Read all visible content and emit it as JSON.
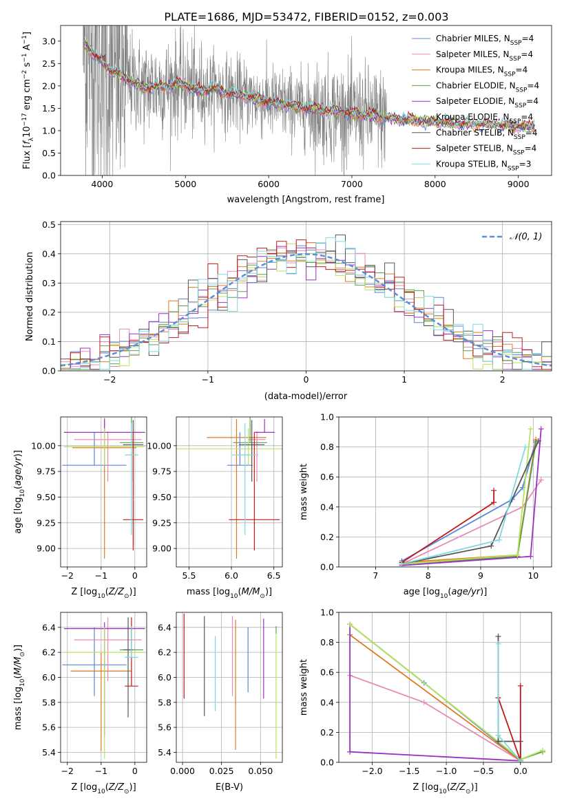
{
  "figure": {
    "title": "PLATE=1686, MJD=53472, FIBERID=0152, z=0.003",
    "models": [
      {
        "name": "Chabrier MILES",
        "nssp": "4",
        "color": "#5b84d8"
      },
      {
        "name": "Salpeter MILES",
        "nssp": "4",
        "color": "#e88ab8"
      },
      {
        "name": "Kroupa MILES",
        "nssp": "4",
        "color": "#e07820"
      },
      {
        "name": "Chabrier ELODIE",
        "nssp": "4",
        "color": "#5e9e4a"
      },
      {
        "name": "Salpeter ELODIE",
        "nssp": "4",
        "color": "#9b30c0"
      },
      {
        "name": "Kroupa ELODIE",
        "nssp": "4",
        "color": "#b6e35a"
      },
      {
        "name": "Chabrier STELIB",
        "nssp": "4",
        "color": "#555555"
      },
      {
        "name": "Salpeter STELIB",
        "nssp": "4",
        "color": "#c01818"
      },
      {
        "name": "Kroupa STELIB",
        "nssp": "3",
        "color": "#7fd8e0"
      }
    ],
    "data_color": "#808080"
  },
  "chart_data": [
    {
      "id": "spectrum",
      "type": "line",
      "title": "PLATE=1686, MJD=53472, FIBERID=0152, z=0.003",
      "xlabel": "wavelength [Angstrom, rest frame]",
      "ylabel_parts": [
        "Flux [",
        "f",
        "λ",
        "10",
        "−17",
        " erg cm",
        "−2",
        " s",
        "−1",
        " A",
        "−1",
        "]"
      ],
      "xlim": [
        3500,
        9400
      ],
      "ylim": [
        0,
        3.35
      ],
      "xticks": [
        4000,
        5000,
        6000,
        7000,
        8000,
        9000
      ],
      "yticks": [
        0.0,
        0.5,
        1.0,
        1.5,
        2.0,
        2.5,
        3.0
      ],
      "continuum": {
        "x": [
          3780,
          3900,
          4000,
          4100,
          4200,
          4300,
          4400,
          4500,
          4600,
          4700,
          4800,
          4900,
          5000,
          5100,
          5200,
          5300,
          5400,
          5500,
          5600,
          5800,
          6000,
          6200,
          6400,
          6600,
          6800,
          7000,
          7200,
          7400,
          7600,
          7800,
          8000,
          8200,
          8400,
          8600,
          8800,
          9000,
          9200
        ],
        "y": [
          2.95,
          2.7,
          2.55,
          2.35,
          2.28,
          2.12,
          2.05,
          1.95,
          2.0,
          1.98,
          2.0,
          2.05,
          2.02,
          1.92,
          1.88,
          1.95,
          1.92,
          1.85,
          1.8,
          1.73,
          1.65,
          1.58,
          1.52,
          1.47,
          1.43,
          1.38,
          1.35,
          1.3,
          1.25,
          1.22,
          1.2,
          1.17,
          1.15,
          1.14,
          1.12,
          1.1,
          1.1
        ]
      },
      "data_xrange": [
        3770,
        7420
      ]
    },
    {
      "id": "residuals",
      "type": "histogram",
      "xlabel": "(data-model)/error",
      "ylabel": "Normed distribution",
      "xlim": [
        -2.5,
        2.5
      ],
      "ylim": [
        0,
        0.51
      ],
      "xticks": [
        -2,
        -1,
        0,
        1,
        2
      ],
      "yticks": [
        0.0,
        0.1,
        0.2,
        0.3,
        0.4,
        0.5
      ],
      "bin_width": 0.1,
      "legend": "𝒩(0, 1)",
      "reference_curve": {
        "type": "gaussian",
        "mean": 0,
        "sigma": 1,
        "color": "#5b8fd8"
      }
    },
    {
      "id": "age-vs-Z",
      "type": "scatter",
      "xlabel": "Z [log10(Z/Z⊙)]",
      "ylabel": "age  [log10(age/yr)]",
      "xlim": [
        -2.2,
        0.35
      ],
      "ylim": [
        8.82,
        10.28
      ],
      "xticks": [
        -2,
        -1,
        0
      ],
      "yticks": [
        9.0,
        9.25,
        9.5,
        9.75,
        10.0
      ],
      "points": [
        {
          "model": 0,
          "x": -1.2,
          "xerr": 0.95,
          "y": 9.81,
          "yerr": [
            0.0,
            0.32
          ]
        },
        {
          "model": 1,
          "x": -0.8,
          "xerr": 1.0,
          "y": 10.06,
          "yerr": [
            0.41,
            0.08
          ]
        },
        {
          "model": 2,
          "x": -0.9,
          "xerr": 0.95,
          "y": 9.98,
          "yerr": [
            1.08,
            0.29
          ]
        },
        {
          "model": 3,
          "x": -0.1,
          "xerr": 0.35,
          "y": 10.03,
          "yerr": [
            0.0,
            0.27
          ]
        },
        {
          "model": 4,
          "x": -0.9,
          "xerr": 1.2,
          "y": 10.13,
          "yerr": [
            0.0,
            0.13
          ]
        },
        {
          "model": 5,
          "x": -0.9,
          "xerr": 1.2,
          "y": 9.99,
          "yerr": [
            0.18,
            0.18
          ]
        },
        {
          "model": 6,
          "x": -0.05,
          "xerr": 0.3,
          "y": 10.01,
          "yerr": [
            0.36,
            0.24
          ]
        },
        {
          "model": 7,
          "x": -0.05,
          "xerr": 0.3,
          "y": 9.28,
          "yerr": [
            0.3,
            0.85
          ]
        },
        {
          "model": 8,
          "x": -0.1,
          "xerr": 0.2,
          "y": 9.91,
          "yerr": [
            0.78,
            0.31
          ]
        }
      ]
    },
    {
      "id": "age-vs-mass",
      "type": "scatter",
      "xlabel": "mass [log10(M/M⊙)]",
      "ylabel": "",
      "xlim": [
        5.35,
        6.6
      ],
      "ylim": [
        8.82,
        10.28
      ],
      "xticks": [
        5.5,
        6.0,
        6.5
      ],
      "yticks": [
        9.0,
        9.25,
        9.5,
        9.75,
        10.0
      ],
      "points": [
        {
          "model": 0,
          "x": 6.1,
          "xerr": 0.15,
          "y": 9.81,
          "yerr": [
            0.0,
            0.32
          ]
        },
        {
          "model": 1,
          "x": 6.3,
          "xerr": 0.1,
          "y": 10.06,
          "yerr": [
            0.41,
            0.08
          ]
        },
        {
          "model": 2,
          "x": 6.06,
          "xerr": 0.35,
          "y": 10.08,
          "yerr": [
            1.18,
            0.18
          ]
        },
        {
          "model": 3,
          "x": 6.22,
          "xerr": 0.2,
          "y": 10.03,
          "yerr": [
            0.0,
            0.27
          ]
        },
        {
          "model": 4,
          "x": 6.39,
          "xerr": 0.12,
          "y": 10.13,
          "yerr": [
            0.0,
            0.13
          ]
        },
        {
          "model": 5,
          "x": 6.2,
          "xerr": 0.85,
          "y": 9.97,
          "yerr": [
            0.16,
            0.2
          ]
        },
        {
          "model": 6,
          "x": 6.24,
          "xerr": 0.15,
          "y": 10.01,
          "yerr": [
            0.36,
            0.24
          ]
        },
        {
          "model": 7,
          "x": 6.27,
          "xerr": 0.3,
          "y": 9.28,
          "yerr": [
            0.3,
            0.85
          ]
        },
        {
          "model": 8,
          "x": 6.16,
          "xerr": 0.15,
          "y": 9.91,
          "yerr": [
            0.78,
            0.31
          ]
        }
      ]
    },
    {
      "id": "massweight-vs-age",
      "type": "line",
      "xlabel": "age  [log10(age/yr)]",
      "ylabel": "mass weight",
      "xlim": [
        6.3,
        10.35
      ],
      "ylim": [
        0,
        1.0
      ],
      "xticks": [
        7,
        8,
        9,
        10
      ],
      "yticks": [
        0.0,
        0.2,
        0.4,
        0.6,
        0.8,
        1.0
      ],
      "series": [
        {
          "model": 0,
          "x": [
            7.5,
            9.6,
            9.8,
            10.05
          ],
          "y": [
            0.04,
            0.45,
            0.53,
            0.84
          ]
        },
        {
          "model": 1,
          "x": [
            7.5,
            9.8,
            10.15
          ],
          "y": [
            0.02,
            0.4,
            0.58
          ]
        },
        {
          "model": 2,
          "x": [
            7.5,
            9.7,
            10.05
          ],
          "y": [
            0.03,
            0.08,
            0.85
          ]
        },
        {
          "model": 3,
          "x": [
            7.5,
            9.7,
            10.05
          ],
          "y": [
            0.02,
            0.07,
            0.83
          ]
        },
        {
          "model": 4,
          "x": [
            7.5,
            9.95,
            10.15
          ],
          "y": [
            0.01,
            0.07,
            0.92
          ]
        },
        {
          "model": 5,
          "x": [
            7.5,
            9.7,
            9.95
          ],
          "y": [
            0.02,
            0.08,
            0.92
          ]
        },
        {
          "model": 6,
          "x": [
            7.5,
            9.2,
            10.1
          ],
          "y": [
            0.02,
            0.14,
            0.84
          ]
        },
        {
          "model": 7,
          "x": [
            7.5,
            9.25,
            9.25
          ],
          "y": [
            0.03,
            0.43,
            0.51
          ]
        },
        {
          "model": 8,
          "x": [
            7.5,
            9.35,
            9.85
          ],
          "y": [
            0.02,
            0.18,
            0.8
          ]
        }
      ]
    },
    {
      "id": "mass-vs-Z",
      "type": "scatter",
      "xlabel": "Z [log10(Z/Z⊙)]",
      "ylabel": "mass [log10(M/M⊙)]",
      "xlim": [
        -2.2,
        0.35
      ],
      "ylim": [
        5.32,
        6.52
      ],
      "xticks": [
        -2,
        -1,
        0
      ],
      "yticks": [
        5.4,
        5.6,
        5.8,
        6.0,
        6.2,
        6.4
      ],
      "points": [
        {
          "model": 0,
          "x": -1.2,
          "xerr": 0.95,
          "y": 6.1,
          "yerr": [
            0.25,
            0.3
          ]
        },
        {
          "model": 1,
          "x": -0.8,
          "xerr": 1.0,
          "y": 6.3,
          "yerr": [
            0.33,
            0.18
          ]
        },
        {
          "model": 2,
          "x": -1.0,
          "xerr": 0.9,
          "y": 6.05,
          "yerr": [
            0.64,
            0.15
          ]
        },
        {
          "model": 3,
          "x": -0.1,
          "xerr": 0.35,
          "y": 6.22,
          "yerr": [
            0.0,
            0.2
          ]
        },
        {
          "model": 4,
          "x": -0.9,
          "xerr": 1.2,
          "y": 6.39,
          "yerr": [
            0.86,
            0.05
          ]
        },
        {
          "model": 5,
          "x": -0.9,
          "xerr": 1.2,
          "y": 6.2,
          "yerr": [
            0.85,
            0.2
          ]
        },
        {
          "model": 6,
          "x": -0.2,
          "xerr": 0.15,
          "y": 6.22,
          "yerr": [
            0.54,
            0.26
          ]
        },
        {
          "model": 7,
          "x": -0.1,
          "xerr": 0.2,
          "y": 5.93,
          "yerr": [
            0.0,
            0.55
          ]
        },
        {
          "model": 8,
          "x": -0.1,
          "xerr": 0.2,
          "y": 6.16,
          "yerr": [
            0.0,
            0.25
          ]
        }
      ]
    },
    {
      "id": "mass-vs-ebv",
      "type": "scatter",
      "xlabel": "E(B-V)",
      "ylabel": "",
      "xlim": [
        -0.004,
        0.064
      ],
      "ylim": [
        5.32,
        6.52
      ],
      "xticks": [
        0.0,
        0.025,
        0.05
      ],
      "xtick_labels": [
        "0.000",
        "0.025",
        "0.050"
      ],
      "yticks": [
        5.4,
        5.6,
        5.8,
        6.0,
        6.2,
        6.4
      ],
      "points": [
        {
          "model": 7,
          "x": 0.001,
          "y": 6.17,
          "yerr": [
            0.34,
            0.34
          ]
        },
        {
          "model": 6,
          "x": 0.014,
          "y": 6.09,
          "yerr": [
            0.4,
            0.4
          ]
        },
        {
          "model": 8,
          "x": 0.021,
          "y": 6.03,
          "yerr": [
            0.3,
            0.3
          ]
        },
        {
          "model": 1,
          "x": 0.032,
          "y": 6.17,
          "yerr": [
            0.32,
            0.32
          ]
        },
        {
          "model": 2,
          "x": 0.034,
          "y": 5.94,
          "yerr": [
            0.52,
            0.52
          ]
        },
        {
          "model": 0,
          "x": 0.042,
          "y": 6.14,
          "yerr": [
            0.26,
            0.26
          ]
        },
        {
          "model": 4,
          "x": 0.052,
          "y": 6.15,
          "yerr": [
            0.32,
            0.32
          ]
        },
        {
          "model": 3,
          "x": 0.06,
          "y": 6.35,
          "yerr": [
            0.0,
            0.06
          ]
        },
        {
          "model": 5,
          "x": 0.06,
          "y": 5.85,
          "yerr": [
            0.5,
            0.5
          ]
        }
      ]
    },
    {
      "id": "massweight-vs-Z",
      "type": "line",
      "xlabel": "Z [log10(Z/Z⊙)]",
      "ylabel": "mass weight",
      "xlim": [
        -2.45,
        0.42
      ],
      "ylim": [
        0,
        1.0
      ],
      "xticks": [
        -2.0,
        -1.5,
        -1.0,
        -0.5,
        0.0
      ],
      "yticks": [
        0.0,
        0.2,
        0.4,
        0.6,
        0.8,
        1.0
      ],
      "series": [
        {
          "model": 0,
          "x": [
            -2.3,
            -1.3,
            0.0
          ],
          "y": [
            0.92,
            0.53,
            0.01
          ]
        },
        {
          "model": 1,
          "x": [
            -2.3,
            -1.3,
            0.0
          ],
          "y": [
            0.58,
            0.4,
            0.01
          ]
        },
        {
          "model": 2,
          "x": [
            -2.3,
            0.0
          ],
          "y": [
            0.85,
            0.01
          ]
        },
        {
          "model": 3,
          "x": [
            -2.3,
            0.0,
            0.3
          ],
          "y": [
            0.92,
            0.02,
            0.07
          ]
        },
        {
          "model": 4,
          "x": [
            -2.3,
            -2.3,
            0.0
          ],
          "y": [
            0.92,
            0.07,
            0.01
          ]
        },
        {
          "model": 5,
          "x": [
            -2.3,
            0.0,
            0.3
          ],
          "y": [
            0.92,
            0.02,
            0.08
          ]
        },
        {
          "model": 6,
          "x": [
            -0.3,
            -0.3,
            0.0,
            0.0
          ],
          "y": [
            0.84,
            0.14,
            0.14,
            0.01
          ]
        },
        {
          "model": 7,
          "x": [
            -0.3,
            0.0,
            0.0
          ],
          "y": [
            0.43,
            0.01,
            0.51
          ]
        },
        {
          "model": 8,
          "x": [
            -0.3,
            -0.3,
            0.0
          ],
          "y": [
            0.79,
            0.18,
            0.01
          ]
        }
      ]
    }
  ]
}
